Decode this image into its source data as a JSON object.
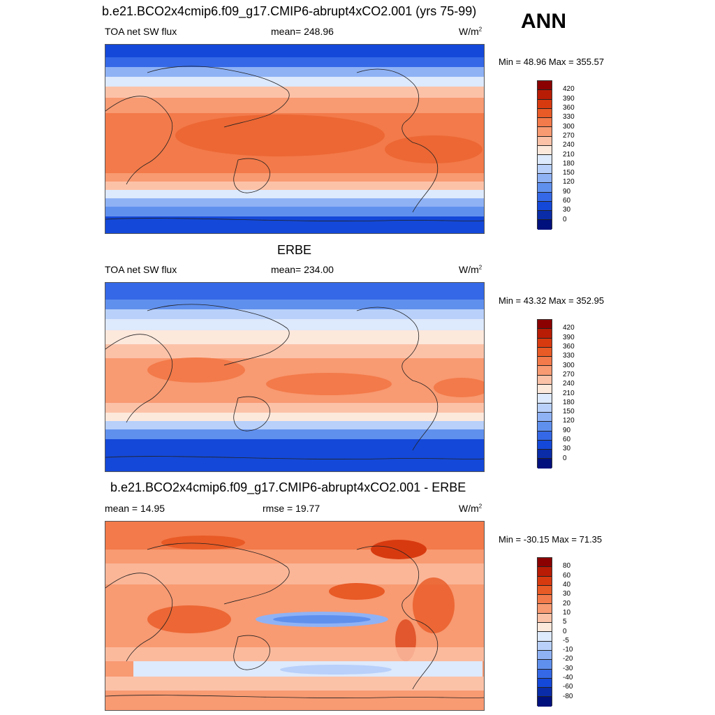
{
  "top_title": "b.e21.BCO2x4cmip6.f09_g17.CMIP6-abrupt4xCO2.001 (yrs 75-99)",
  "season": "ANN",
  "panels": [
    {
      "title": "b.e21.BCO2x4cmip6.f09_g17.CMIP6-abrupt4xCO2.001 (yrs 75-99)",
      "left_label": "TOA net SW flux",
      "center_label": "mean= 248.96",
      "units": "W/m",
      "units_exp": "2",
      "minmax": "Min =  48.96 Max = 355.57",
      "ticks": [
        "420",
        "390",
        "360",
        "330",
        "300",
        "270",
        "240",
        "210",
        "180",
        "150",
        "120",
        "90",
        "60",
        "30",
        "0"
      ],
      "colors": [
        "#8b0000",
        "#b81c05",
        "#d83a10",
        "#e85a26",
        "#f37a4a",
        "#f89a72",
        "#fcc2a8",
        "#fde8dc",
        "#dde9fc",
        "#b8d0fa",
        "#8fb2f5",
        "#6090ee",
        "#3468e6",
        "#1448d8",
        "#0a2ca8",
        "#00107c"
      ]
    },
    {
      "title": "ERBE",
      "left_label": "TOA net SW flux",
      "center_label": "mean= 234.00",
      "units": "W/m",
      "units_exp": "2",
      "minmax": "Min =  43.32 Max = 352.95",
      "ticks": [
        "420",
        "390",
        "360",
        "330",
        "300",
        "270",
        "240",
        "210",
        "180",
        "150",
        "120",
        "90",
        "60",
        "30",
        "0"
      ],
      "colors": [
        "#8b0000",
        "#b81c05",
        "#d83a10",
        "#e85a26",
        "#f37a4a",
        "#f89a72",
        "#fcc2a8",
        "#fde8dc",
        "#dde9fc",
        "#b8d0fa",
        "#8fb2f5",
        "#6090ee",
        "#3468e6",
        "#1448d8",
        "#0a2ca8",
        "#00107c"
      ]
    },
    {
      "title": "b.e21.BCO2x4cmip6.f09_g17.CMIP6-abrupt4xCO2.001 - ERBE",
      "left_label": "mean =  14.95",
      "center_label": "rmse =  19.77",
      "units": "W/m",
      "units_exp": "2",
      "minmax": "Min = -30.15 Max =  71.35",
      "ticks": [
        "80",
        "60",
        "40",
        "30",
        "20",
        "10",
        "5",
        "0",
        "-5",
        "-10",
        "-20",
        "-30",
        "-40",
        "-60",
        "-80"
      ],
      "colors": [
        "#8b0000",
        "#b81c05",
        "#d83a10",
        "#e85a26",
        "#f37a4a",
        "#f89a72",
        "#fcc2a8",
        "#fde8dc",
        "#dde9fc",
        "#b8d0fa",
        "#8fb2f5",
        "#6090ee",
        "#3468e6",
        "#1448d8",
        "#0a2ca8",
        "#00107c"
      ]
    }
  ]
}
